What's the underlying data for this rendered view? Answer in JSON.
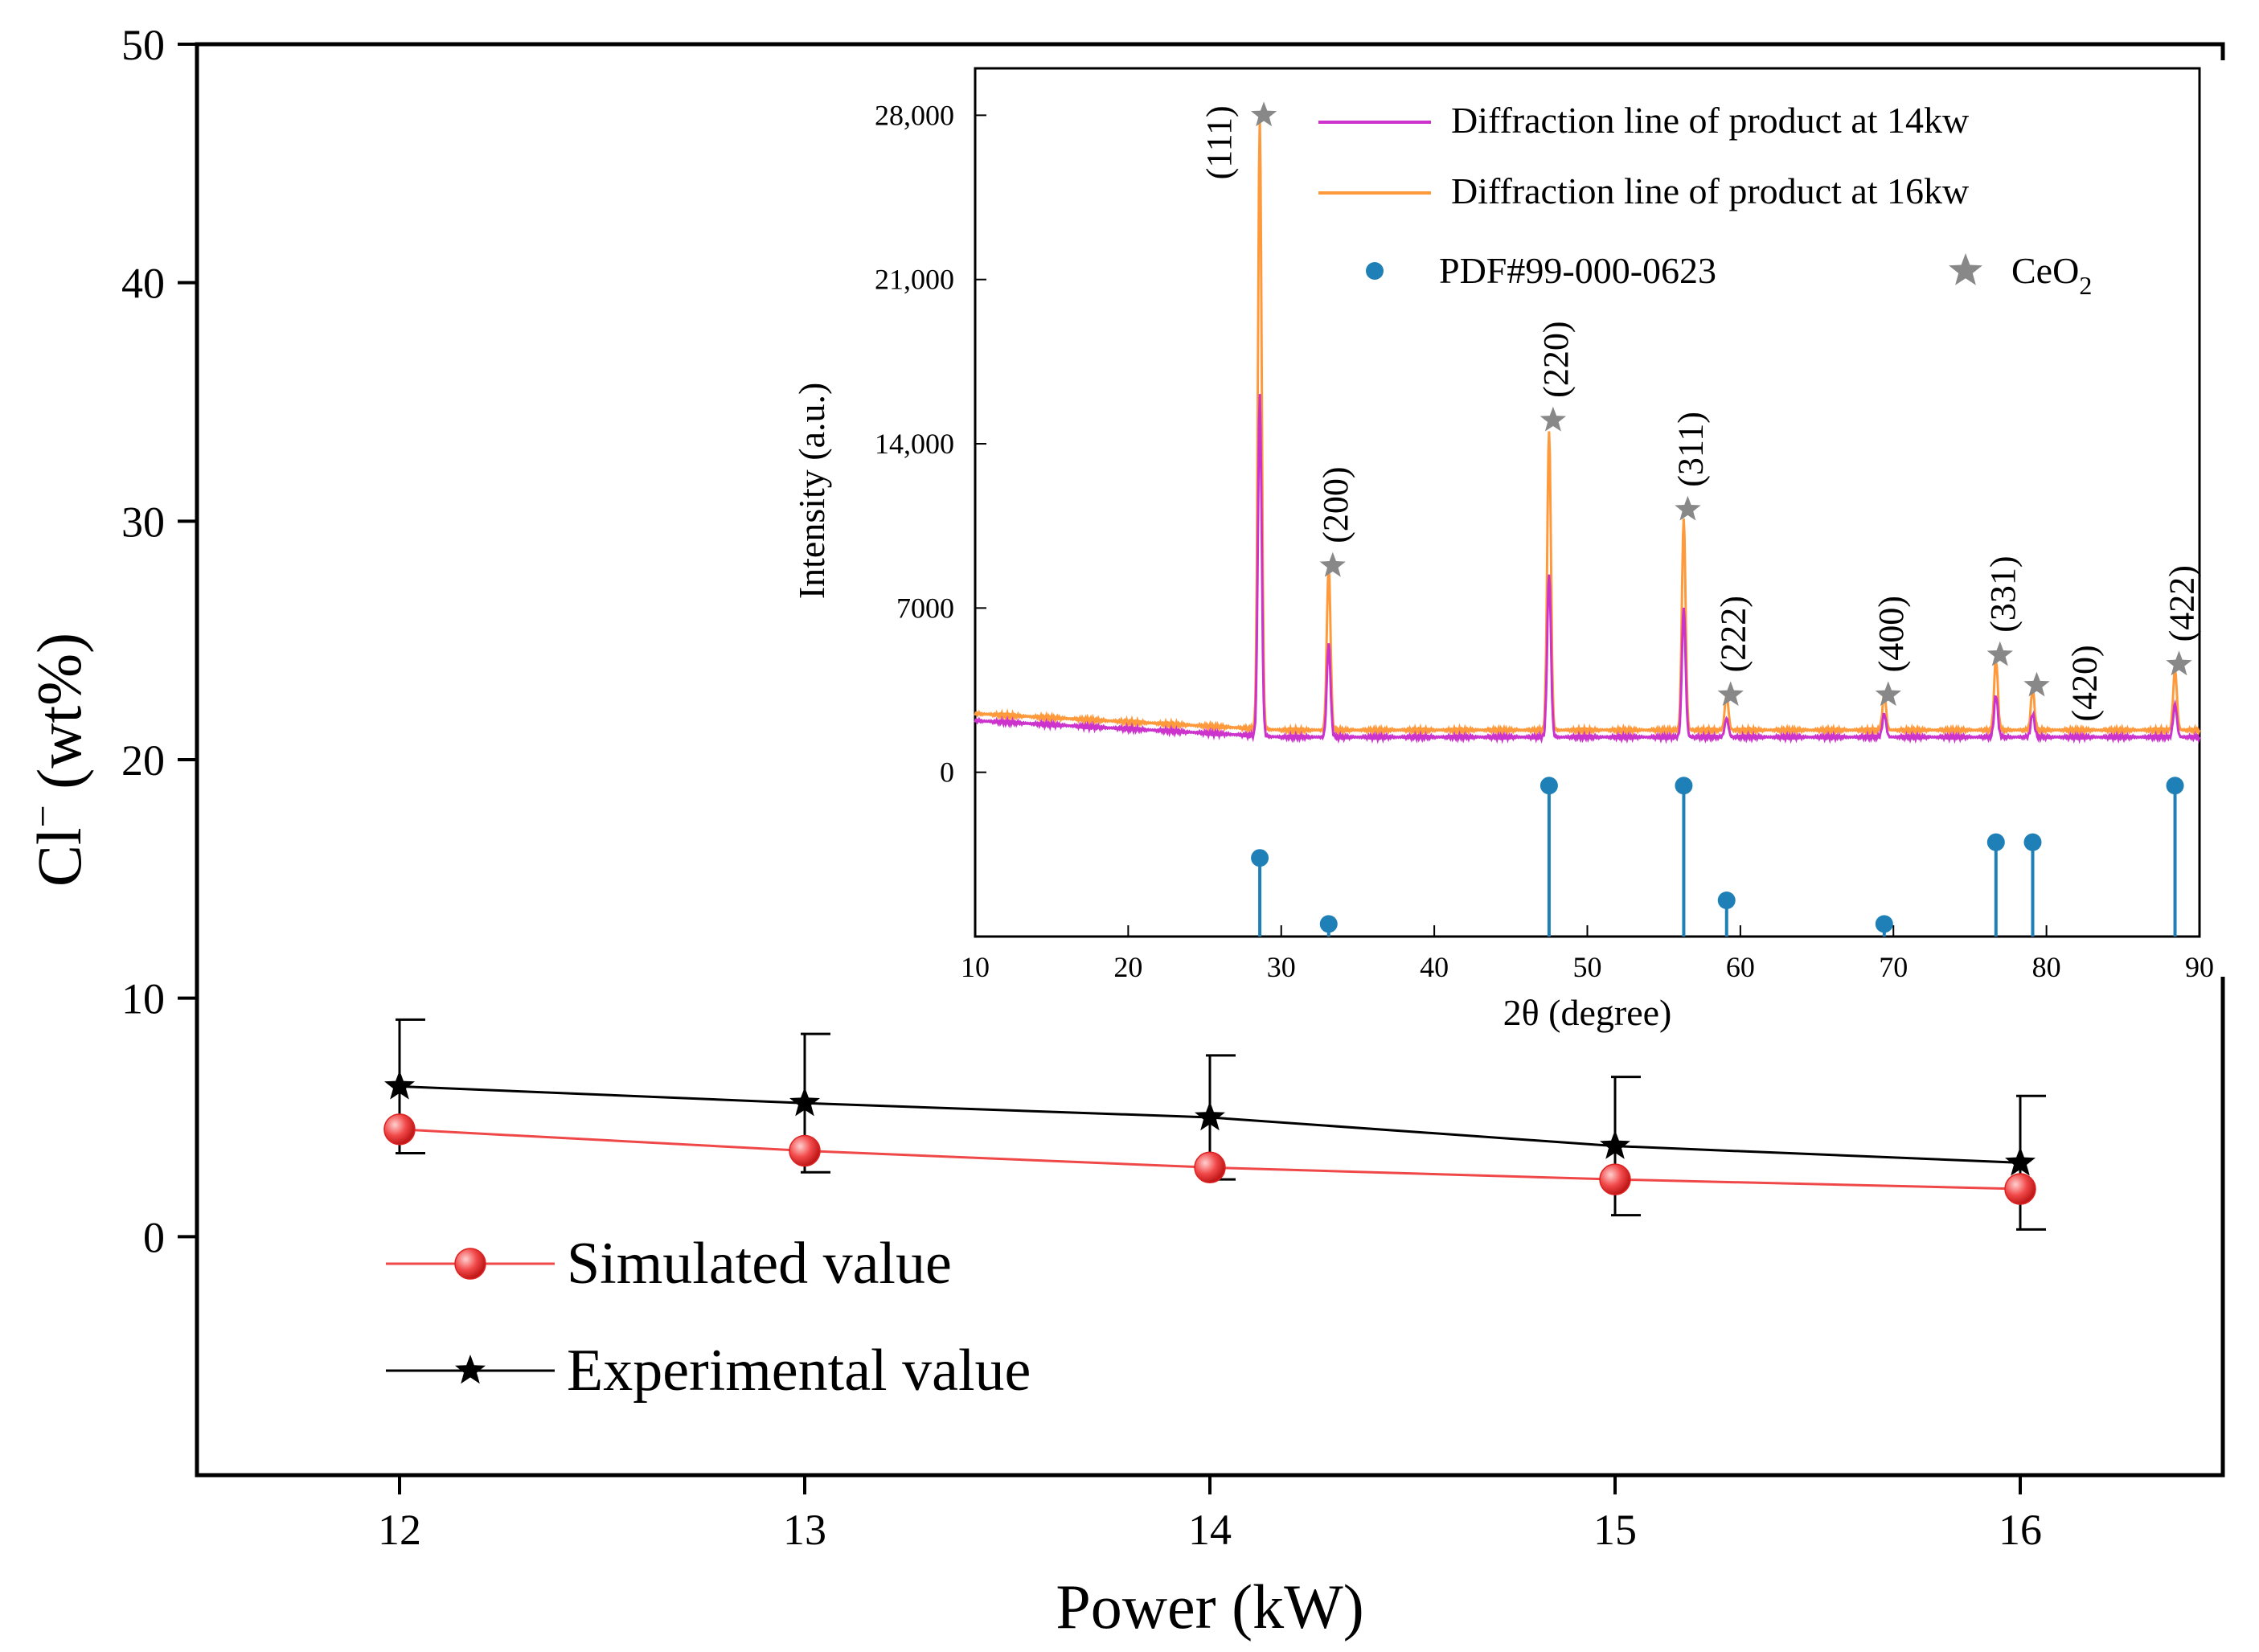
{
  "chart_data": [
    {
      "type": "line",
      "xlabel": "Power (kW)",
      "ylabel_main": "Cl",
      "ylabel_sup": "−",
      "ylabel_rest": " (wt%)",
      "xlim": [
        11.5,
        16.5
      ],
      "ylim": [
        -10,
        50
      ],
      "x_ticks": [
        12,
        13,
        14,
        15,
        16
      ],
      "x_tick_labels": [
        "12",
        "13",
        "14",
        "15",
        "16"
      ],
      "y_ticks": [
        0,
        10,
        20,
        30,
        40,
        50
      ],
      "y_tick_labels": [
        "0",
        "10",
        "20",
        "30",
        "40",
        "50"
      ],
      "series": [
        {
          "name": "Simulated value",
          "marker": "circle",
          "color": "#f04848",
          "x": [
            12,
            13,
            14,
            15,
            16
          ],
          "y": [
            4.5,
            3.6,
            2.9,
            2.4,
            2.0
          ]
        },
        {
          "name": "Experimental value",
          "marker": "star",
          "color": "#000000",
          "x": [
            12,
            13,
            14,
            15,
            16
          ],
          "y": [
            6.3,
            5.6,
            5.0,
            3.8,
            3.1
          ],
          "error": [
            2.8,
            2.9,
            2.6,
            2.9,
            2.8
          ]
        }
      ],
      "legend": {
        "position": "bottom-left",
        "entries": [
          "Simulated value",
          "Experimental value"
        ]
      }
    },
    {
      "type": "line",
      "title": "",
      "xlabel": "2θ (degree)",
      "ylabel": "Intensity (a.u.)",
      "xlim": [
        10,
        90
      ],
      "ylim": [
        -7000,
        30000
      ],
      "x_ticks": [
        10,
        20,
        30,
        40,
        50,
        60,
        70,
        80,
        90
      ],
      "x_tick_labels": [
        "10",
        "20",
        "30",
        "40",
        "50",
        "60",
        "70",
        "80",
        "90"
      ],
      "y_ticks": [
        0,
        7000,
        14000,
        21000,
        28000
      ],
      "y_tick_labels": [
        "0",
        "7000",
        "14,000",
        "21,000",
        "28,000"
      ],
      "baseline_14kw": 1500,
      "baseline_16kw": 1800,
      "peaks": [
        {
          "two_theta": 28.6,
          "h14": 14500,
          "h16": 26000,
          "hkl": "(111)",
          "star_y": 28000
        },
        {
          "two_theta": 33.1,
          "h14": 4000,
          "h16": 7000,
          "hkl": "(200)",
          "star_y": 8800
        },
        {
          "two_theta": 47.5,
          "h14": 7000,
          "h16": 12800,
          "hkl": "(220)",
          "star_y": 15000
        },
        {
          "two_theta": 56.3,
          "h14": 5500,
          "h16": 9000,
          "hkl": "(311)",
          "star_y": 11200
        },
        {
          "two_theta": 59.1,
          "h14": 800,
          "h16": 1500,
          "hkl": "(222)",
          "star_y": 3300
        },
        {
          "two_theta": 69.4,
          "h14": 1000,
          "h16": 1500,
          "hkl": "(400)",
          "star_y": 3300
        },
        {
          "two_theta": 76.7,
          "h14": 1800,
          "h16": 3000,
          "hkl": "(331)",
          "star_y": 5000
        },
        {
          "two_theta": 79.1,
          "h14": 1000,
          "h16": 1700,
          "hkl": "(420)",
          "star_y": 3700
        },
        {
          "two_theta": 88.4,
          "h14": 1400,
          "h16": 2600,
          "hkl": "(422)",
          "star_y": 4600
        }
      ],
      "pdf_reference": {
        "name": "PDF#99-000-0623",
        "two_theta": [
          28.6,
          33.1,
          47.5,
          56.3,
          59.1,
          69.4,
          76.7,
          79.1,
          88.4
        ],
        "relative_intensity": [
          50,
          8,
          96,
          96,
          23,
          8,
          60,
          60,
          96
        ]
      },
      "legend": {
        "position": "top-right",
        "entries": [
          {
            "label": "Diffraction line of product at 14kw",
            "color": "#cc33cc"
          },
          {
            "label": "Diffraction line of product at 16kw",
            "color": "#ff9a3c"
          },
          {
            "label": "PDF#99-000-0623",
            "color": "#1f80b8"
          },
          {
            "label": "CeO",
            "sub": "2",
            "color": "#888888"
          }
        ]
      }
    }
  ]
}
